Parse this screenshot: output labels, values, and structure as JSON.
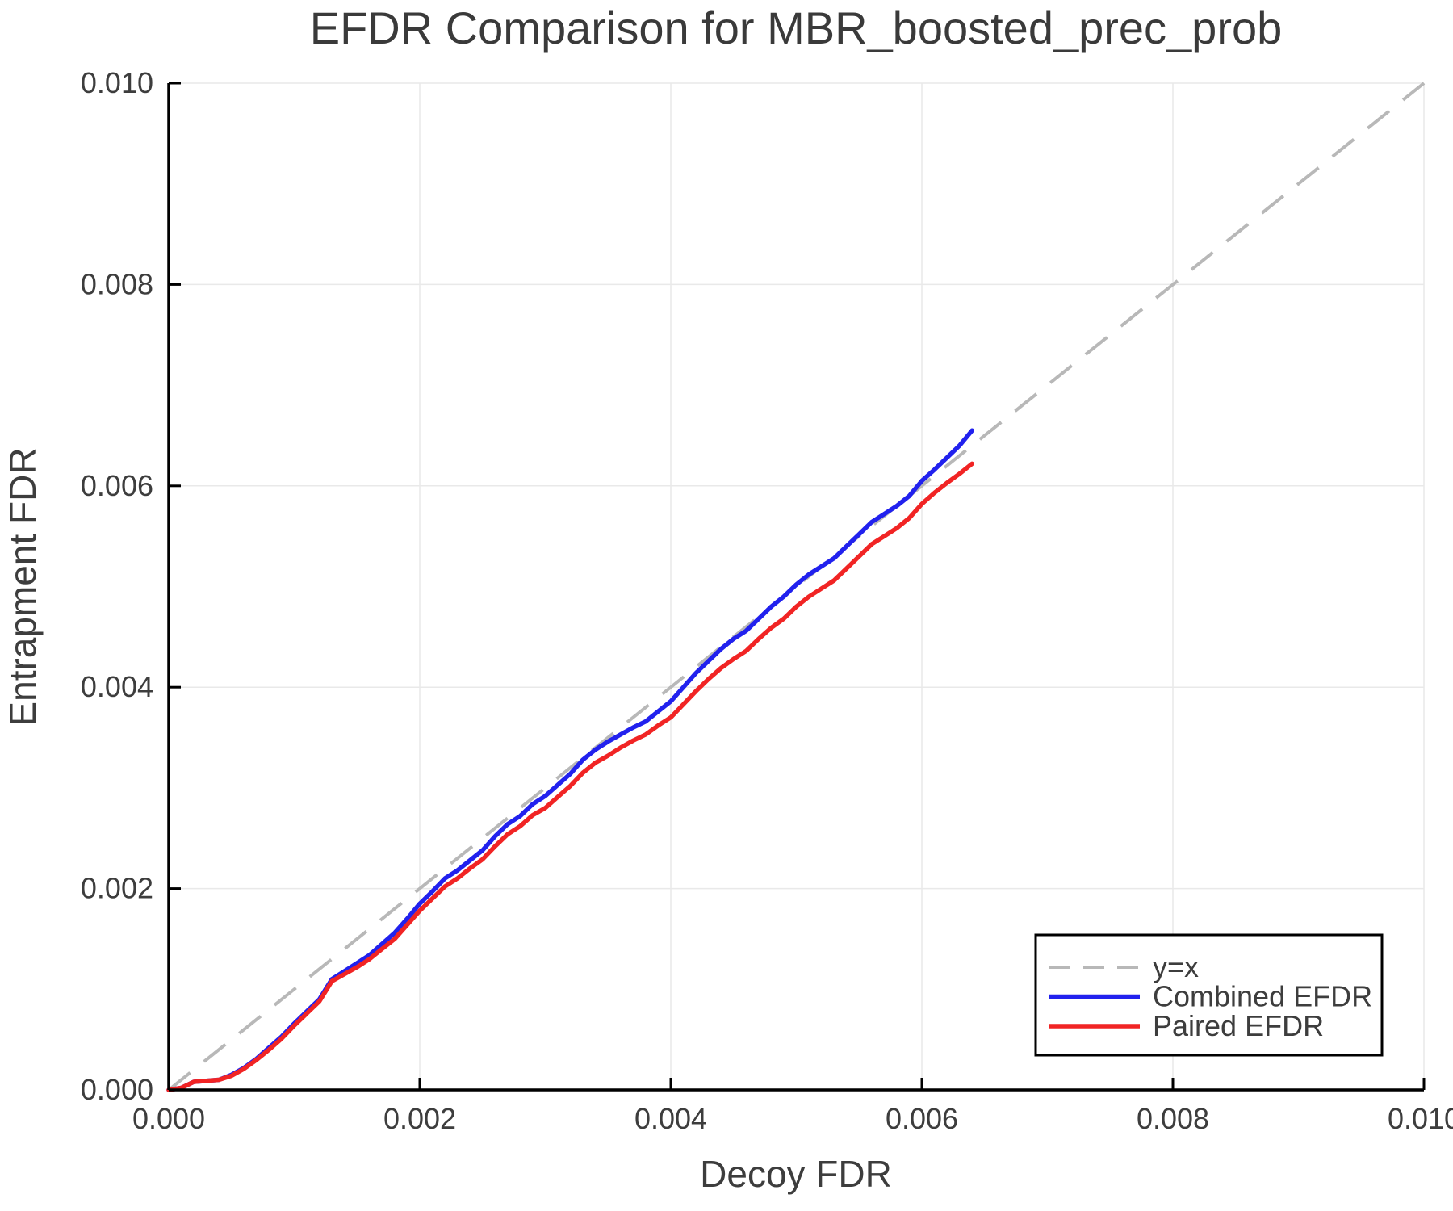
{
  "chart_data": {
    "type": "line",
    "title": "EFDR Comparison for MBR_boosted_prec_prob",
    "xlabel": "Decoy FDR",
    "ylabel": "Entrapment FDR",
    "xlim": [
      0.0,
      0.01
    ],
    "ylim": [
      0.0,
      0.01
    ],
    "x_ticks": [
      0.0,
      0.002,
      0.004,
      0.006,
      0.008,
      0.01
    ],
    "y_ticks": [
      0.0,
      0.002,
      0.004,
      0.006,
      0.008,
      0.01
    ],
    "tick_decimals": 3,
    "grid": true,
    "grid_color": "#e9e9e9",
    "spine_color": "#000000",
    "legend_position": "lower-right",
    "identity_line": {
      "label": "y=x",
      "color": "#b8b8b8",
      "style": "dashed",
      "from": [
        0.0,
        0.0
      ],
      "to": [
        0.01,
        0.01
      ]
    },
    "x": [
      0.0,
      0.0001,
      0.0002,
      0.0003,
      0.0004,
      0.0005,
      0.0006,
      0.0007,
      0.0008,
      0.0009,
      0.001,
      0.0011,
      0.0012,
      0.0013,
      0.0014,
      0.0015,
      0.0016,
      0.0017,
      0.0018,
      0.0019,
      0.002,
      0.0021,
      0.0022,
      0.0023,
      0.0024,
      0.0025,
      0.0026,
      0.0027,
      0.0028,
      0.0029,
      0.003,
      0.0031,
      0.0032,
      0.0033,
      0.0034,
      0.0035,
      0.0036,
      0.0037,
      0.0038,
      0.0039,
      0.004,
      0.0041,
      0.0042,
      0.0043,
      0.0044,
      0.0045,
      0.0046,
      0.0047,
      0.0048,
      0.0049,
      0.005,
      0.0051,
      0.0052,
      0.0053,
      0.0054,
      0.0055,
      0.0056,
      0.0057,
      0.0058,
      0.0059,
      0.006,
      0.0061,
      0.0062,
      0.0063,
      0.0064
    ],
    "series": [
      {
        "name": "Combined EFDR",
        "color": "#2121ee",
        "values": [
          0.0,
          2e-05,
          8e-05,
          9e-05,
          0.0001,
          0.00015,
          0.00022,
          0.00031,
          0.00042,
          0.00053,
          0.00066,
          0.00078,
          0.0009,
          0.0011,
          0.00118,
          0.00126,
          0.00134,
          0.00145,
          0.00156,
          0.0017,
          0.00185,
          0.00197,
          0.0021,
          0.00218,
          0.00228,
          0.00238,
          0.00252,
          0.00264,
          0.00272,
          0.00284,
          0.00292,
          0.00303,
          0.00314,
          0.00328,
          0.00338,
          0.00346,
          0.00353,
          0.0036,
          0.00366,
          0.00376,
          0.00386,
          0.004,
          0.00414,
          0.00426,
          0.00438,
          0.00448,
          0.00456,
          0.00468,
          0.0048,
          0.0049,
          0.00502,
          0.00512,
          0.0052,
          0.00528,
          0.0054,
          0.00552,
          0.00564,
          0.00572,
          0.0058,
          0.0059,
          0.00605,
          0.00616,
          0.00628,
          0.0064,
          0.00655
        ]
      },
      {
        "name": "Paired EFDR",
        "color": "#f12424",
        "values": [
          0.0,
          2e-05,
          8e-05,
          9e-05,
          0.0001,
          0.00014,
          0.00021,
          0.0003,
          0.0004,
          0.00051,
          0.00064,
          0.00076,
          0.00088,
          0.00108,
          0.00115,
          0.00122,
          0.0013,
          0.0014,
          0.0015,
          0.00164,
          0.00178,
          0.0019,
          0.00202,
          0.0021,
          0.0022,
          0.00229,
          0.00242,
          0.00254,
          0.00262,
          0.00273,
          0.0028,
          0.00291,
          0.00302,
          0.00315,
          0.00325,
          0.00332,
          0.0034,
          0.00347,
          0.00353,
          0.00362,
          0.0037,
          0.00383,
          0.00396,
          0.00408,
          0.00419,
          0.00428,
          0.00436,
          0.00448,
          0.00459,
          0.00468,
          0.0048,
          0.0049,
          0.00498,
          0.00506,
          0.00518,
          0.0053,
          0.00542,
          0.0055,
          0.00558,
          0.00568,
          0.00582,
          0.00593,
          0.00603,
          0.00612,
          0.00622
        ]
      }
    ]
  }
}
